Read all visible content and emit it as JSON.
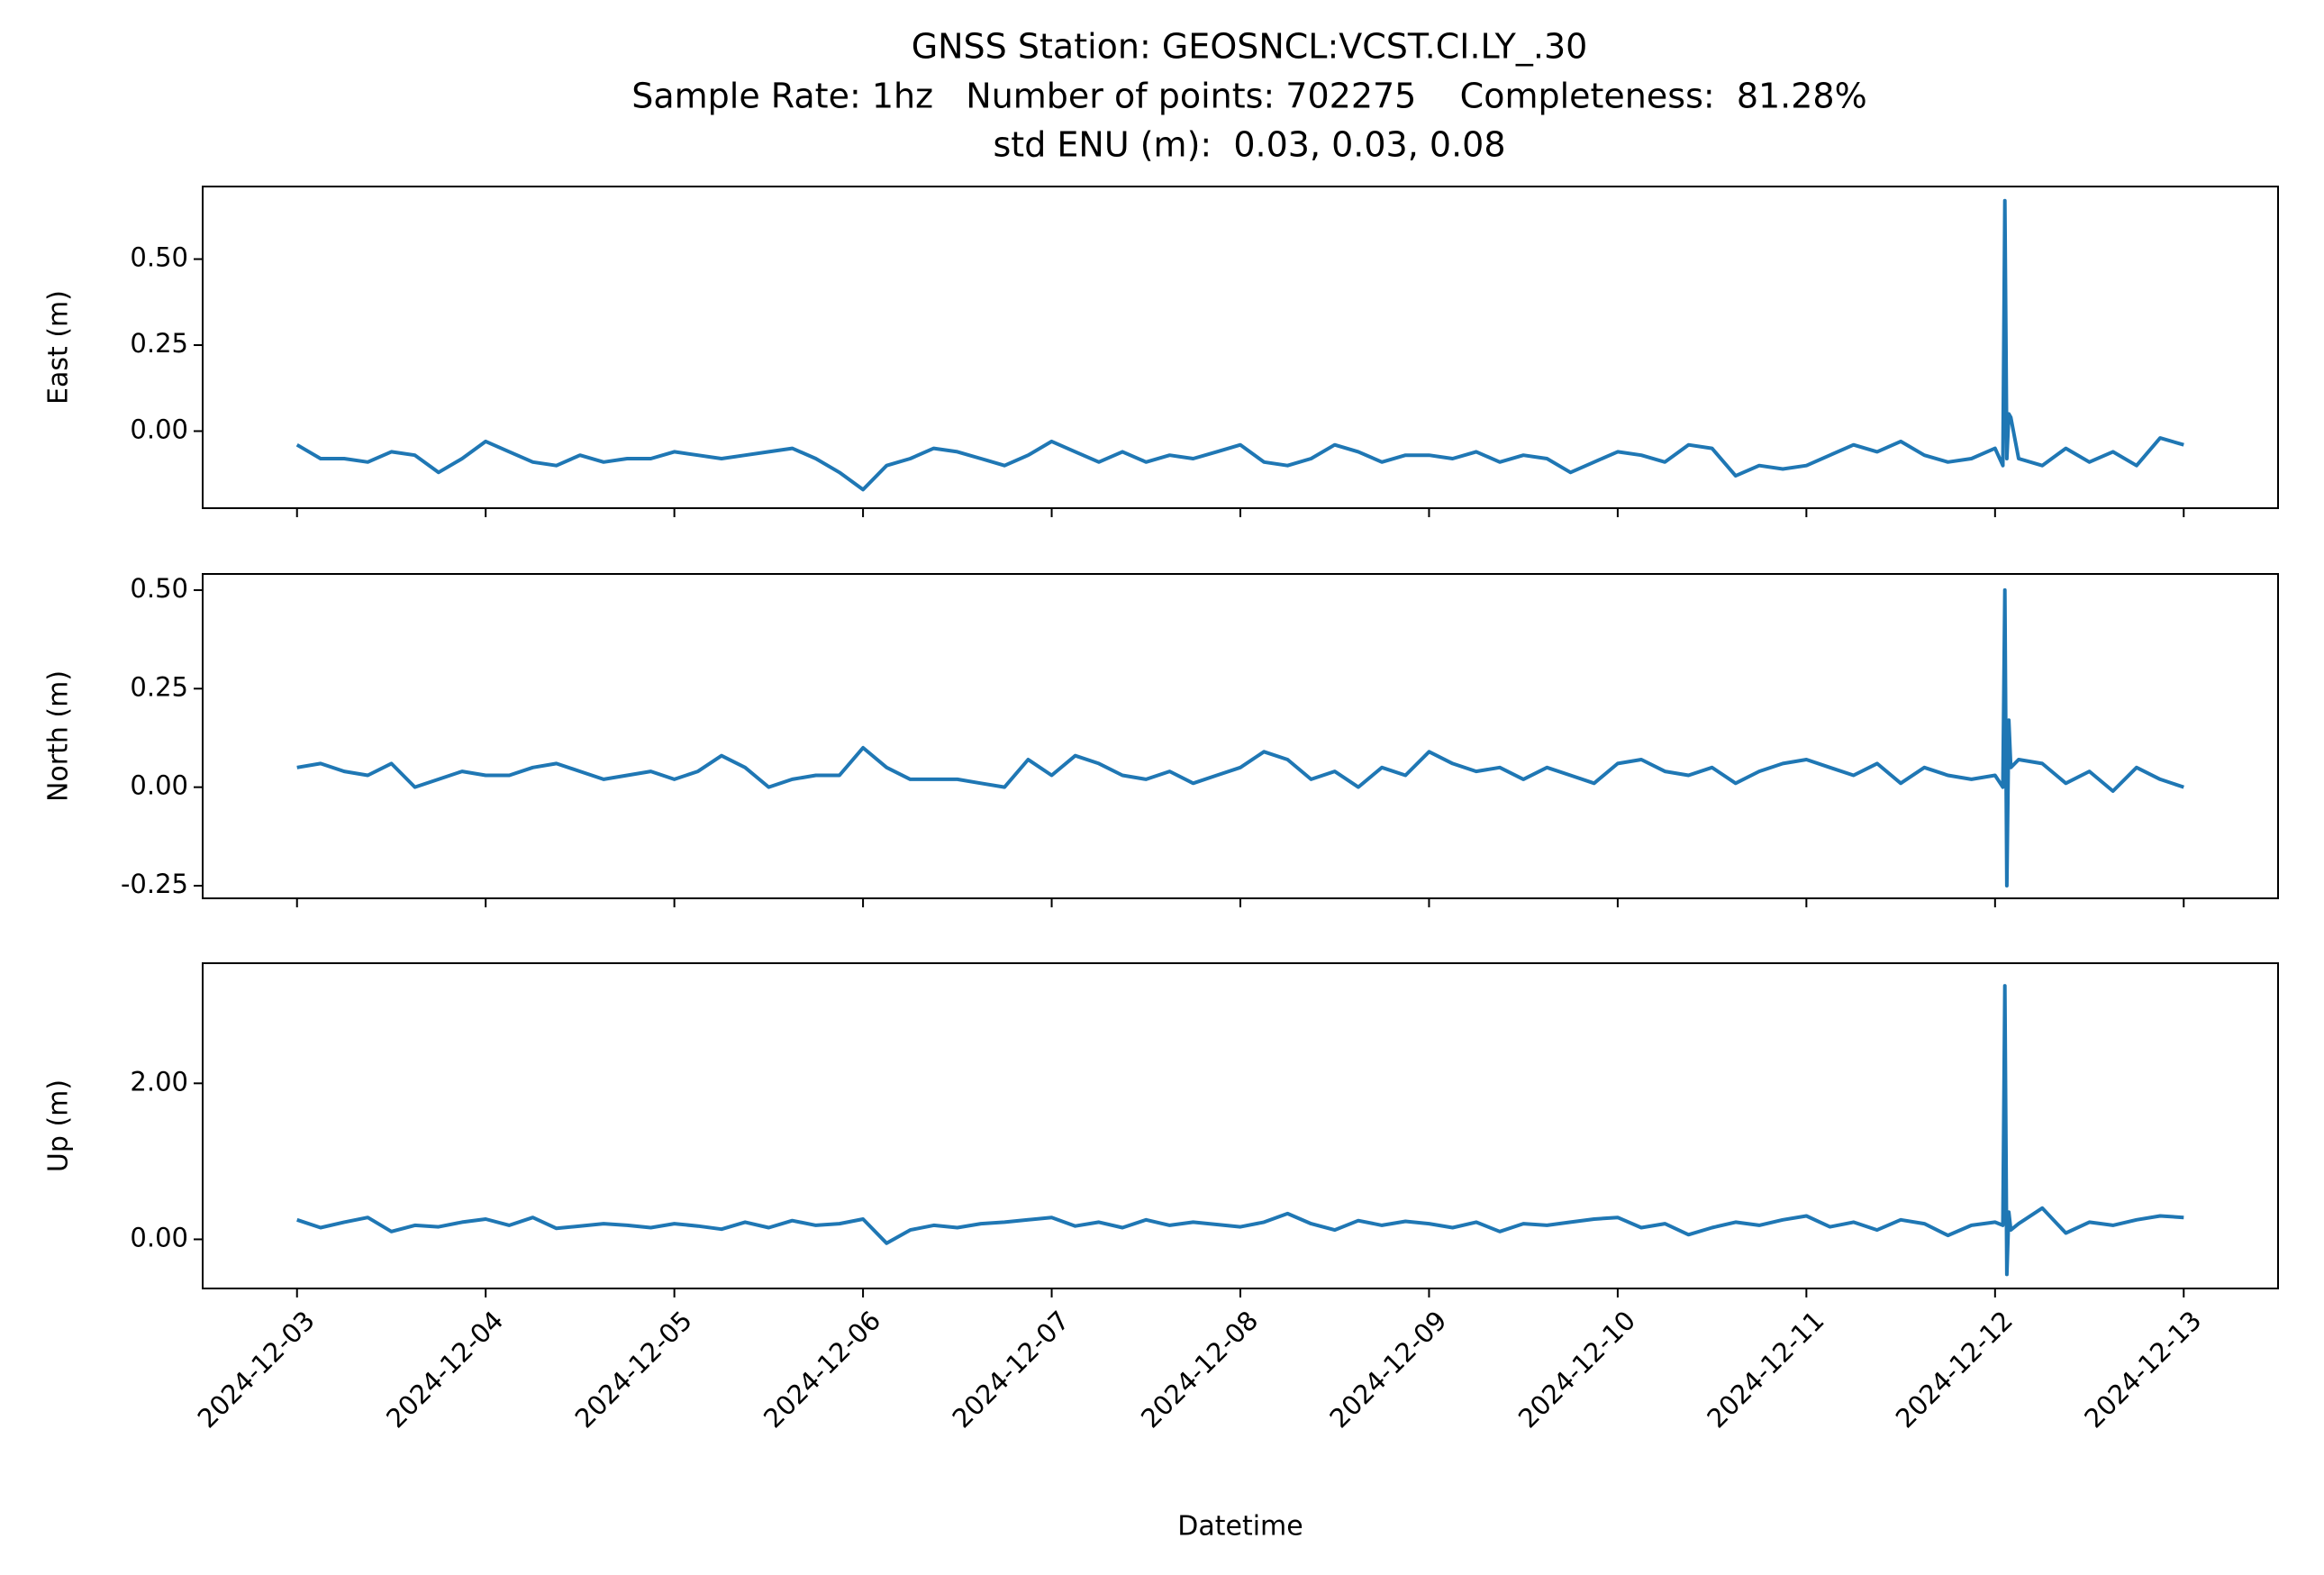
{
  "title": [
    "GNSS Station: GEOSNCL:VCST.CI.LY_.30",
    "Sample Rate: 1hz   Number of points: 702275    Completeness:  81.28%",
    "std ENU (m):  0.03, 0.03, 0.08"
  ],
  "chart_data": [
    {
      "type": "line",
      "ylabel": "East (m)",
      "color": "#1f77b4",
      "x": [
        "2024-12-03T00:00",
        "2024-12-03T03:00",
        "2024-12-03T06:00",
        "2024-12-03T09:00",
        "2024-12-03T12:00",
        "2024-12-03T15:00",
        "2024-12-03T18:00",
        "2024-12-03T21:00",
        "2024-12-04T00:00",
        "2024-12-04T03:00",
        "2024-12-04T06:00",
        "2024-12-04T09:00",
        "2024-12-04T12:00",
        "2024-12-04T15:00",
        "2024-12-04T18:00",
        "2024-12-04T21:00",
        "2024-12-05T00:00",
        "2024-12-05T03:00",
        "2024-12-05T06:00",
        "2024-12-05T09:00",
        "2024-12-05T12:00",
        "2024-12-05T15:00",
        "2024-12-05T18:00",
        "2024-12-05T21:00",
        "2024-12-06T00:00",
        "2024-12-06T03:00",
        "2024-12-06T06:00",
        "2024-12-06T09:00",
        "2024-12-06T12:00",
        "2024-12-06T15:00",
        "2024-12-06T18:00",
        "2024-12-06T21:00",
        "2024-12-07T00:00",
        "2024-12-07T03:00",
        "2024-12-07T06:00",
        "2024-12-07T09:00",
        "2024-12-07T12:00",
        "2024-12-07T15:00",
        "2024-12-07T18:00",
        "2024-12-07T21:00",
        "2024-12-08T00:00",
        "2024-12-08T03:00",
        "2024-12-08T06:00",
        "2024-12-08T09:00",
        "2024-12-08T12:00",
        "2024-12-08T15:00",
        "2024-12-08T18:00",
        "2024-12-08T21:00",
        "2024-12-09T00:00",
        "2024-12-09T03:00",
        "2024-12-09T06:00",
        "2024-12-09T09:00",
        "2024-12-09T12:00",
        "2024-12-09T15:00",
        "2024-12-09T18:00",
        "2024-12-09T21:00",
        "2024-12-10T00:00",
        "2024-12-10T03:00",
        "2024-12-10T06:00",
        "2024-12-10T09:00",
        "2024-12-10T12:00",
        "2024-12-10T15:00",
        "2024-12-10T18:00",
        "2024-12-10T21:00",
        "2024-12-11T00:00",
        "2024-12-11T03:00",
        "2024-12-11T06:00",
        "2024-12-11T09:00",
        "2024-12-11T12:00",
        "2024-12-11T15:00",
        "2024-12-11T18:00",
        "2024-12-11T21:00",
        "2024-12-12T00:00",
        "2024-12-12T01:00",
        "2024-12-12T01:15",
        "2024-12-12T01:30",
        "2024-12-12T01:45",
        "2024-12-12T02:00",
        "2024-12-12T03:00",
        "2024-12-12T06:00",
        "2024-12-12T09:00",
        "2024-12-12T12:00",
        "2024-12-12T15:00",
        "2024-12-12T18:00",
        "2024-12-12T21:00",
        "2024-12-13T00:00"
      ],
      "values": [
        -0.04,
        -0.08,
        -0.08,
        -0.09,
        -0.06,
        -0.07,
        -0.12,
        -0.08,
        -0.03,
        -0.06,
        -0.09,
        -0.1,
        -0.07,
        -0.09,
        -0.08,
        -0.08,
        -0.06,
        -0.07,
        -0.08,
        -0.07,
        -0.06,
        -0.05,
        -0.08,
        -0.12,
        -0.17,
        -0.1,
        -0.08,
        -0.05,
        -0.06,
        -0.08,
        -0.1,
        -0.07,
        -0.03,
        -0.06,
        -0.09,
        -0.06,
        -0.09,
        -0.07,
        -0.08,
        -0.06,
        -0.04,
        -0.09,
        -0.1,
        -0.08,
        -0.04,
        -0.06,
        -0.09,
        -0.07,
        -0.07,
        -0.08,
        -0.06,
        -0.09,
        -0.07,
        -0.08,
        -0.12,
        -0.09,
        -0.06,
        -0.07,
        -0.09,
        -0.04,
        -0.05,
        -0.13,
        -0.1,
        -0.11,
        -0.1,
        -0.07,
        -0.04,
        -0.06,
        -0.03,
        -0.07,
        -0.09,
        -0.08,
        -0.05,
        -0.1,
        0.67,
        -0.08,
        0.05,
        0.04,
        -0.08,
        -0.1,
        -0.05,
        -0.09,
        -0.06,
        -0.1,
        -0.02,
        -0.04
      ],
      "xlim": [
        "2024-12-02T12:00",
        "2024-12-13T12:00"
      ],
      "xticks": [
        "2024-12-03",
        "2024-12-04",
        "2024-12-05",
        "2024-12-06",
        "2024-12-07",
        "2024-12-08",
        "2024-12-09",
        "2024-12-10",
        "2024-12-11",
        "2024-12-12",
        "2024-12-13"
      ],
      "ylim": [
        -0.224,
        0.711
      ],
      "yticks": [
        {
          "value": 0.5,
          "label": "0.50"
        },
        {
          "value": 0.25,
          "label": "0.25"
        },
        {
          "value": 0,
          "label": "0.00"
        }
      ]
    },
    {
      "type": "line",
      "ylabel": "North (m)",
      "color": "#1f77b4",
      "x": [
        "2024-12-03T00:00",
        "2024-12-03T03:00",
        "2024-12-03T06:00",
        "2024-12-03T09:00",
        "2024-12-03T12:00",
        "2024-12-03T15:00",
        "2024-12-03T18:00",
        "2024-12-03T21:00",
        "2024-12-04T00:00",
        "2024-12-04T03:00",
        "2024-12-04T06:00",
        "2024-12-04T09:00",
        "2024-12-04T12:00",
        "2024-12-04T15:00",
        "2024-12-04T18:00",
        "2024-12-04T21:00",
        "2024-12-05T00:00",
        "2024-12-05T03:00",
        "2024-12-05T06:00",
        "2024-12-05T09:00",
        "2024-12-05T12:00",
        "2024-12-05T15:00",
        "2024-12-05T18:00",
        "2024-12-05T21:00",
        "2024-12-06T00:00",
        "2024-12-06T03:00",
        "2024-12-06T06:00",
        "2024-12-06T09:00",
        "2024-12-06T12:00",
        "2024-12-06T15:00",
        "2024-12-06T18:00",
        "2024-12-06T21:00",
        "2024-12-07T00:00",
        "2024-12-07T03:00",
        "2024-12-07T06:00",
        "2024-12-07T09:00",
        "2024-12-07T12:00",
        "2024-12-07T15:00",
        "2024-12-07T18:00",
        "2024-12-07T21:00",
        "2024-12-08T00:00",
        "2024-12-08T03:00",
        "2024-12-08T06:00",
        "2024-12-08T09:00",
        "2024-12-08T12:00",
        "2024-12-08T15:00",
        "2024-12-08T18:00",
        "2024-12-08T21:00",
        "2024-12-09T00:00",
        "2024-12-09T03:00",
        "2024-12-09T06:00",
        "2024-12-09T09:00",
        "2024-12-09T12:00",
        "2024-12-09T15:00",
        "2024-12-09T18:00",
        "2024-12-09T21:00",
        "2024-12-10T00:00",
        "2024-12-10T03:00",
        "2024-12-10T06:00",
        "2024-12-10T09:00",
        "2024-12-10T12:00",
        "2024-12-10T15:00",
        "2024-12-10T18:00",
        "2024-12-10T21:00",
        "2024-12-11T00:00",
        "2024-12-11T03:00",
        "2024-12-11T06:00",
        "2024-12-11T09:00",
        "2024-12-11T12:00",
        "2024-12-11T15:00",
        "2024-12-11T18:00",
        "2024-12-11T21:00",
        "2024-12-12T00:00",
        "2024-12-12T01:00",
        "2024-12-12T01:15",
        "2024-12-12T01:30",
        "2024-12-12T01:45",
        "2024-12-12T02:00",
        "2024-12-12T03:00",
        "2024-12-12T06:00",
        "2024-12-12T09:00",
        "2024-12-12T12:00",
        "2024-12-12T15:00",
        "2024-12-12T18:00",
        "2024-12-12T21:00",
        "2024-12-13T00:00"
      ],
      "values": [
        0.05,
        0.06,
        0.04,
        0.03,
        0.06,
        0.0,
        0.02,
        0.04,
        0.03,
        0.03,
        0.05,
        0.06,
        0.04,
        0.02,
        0.03,
        0.04,
        0.02,
        0.04,
        0.08,
        0.05,
        0.0,
        0.02,
        0.03,
        0.03,
        0.1,
        0.05,
        0.02,
        0.02,
        0.02,
        0.01,
        0.0,
        0.07,
        0.03,
        0.08,
        0.06,
        0.03,
        0.02,
        0.04,
        0.01,
        0.03,
        0.05,
        0.09,
        0.07,
        0.02,
        0.04,
        0.0,
        0.05,
        0.03,
        0.09,
        0.06,
        0.04,
        0.05,
        0.02,
        0.05,
        0.03,
        0.01,
        0.06,
        0.07,
        0.04,
        0.03,
        0.05,
        0.01,
        0.04,
        0.06,
        0.07,
        0.05,
        0.03,
        0.06,
        0.01,
        0.05,
        0.03,
        0.02,
        0.03,
        0.0,
        0.5,
        -0.25,
        0.17,
        0.05,
        0.07,
        0.06,
        0.01,
        0.04,
        -0.01,
        0.05,
        0.02,
        0.0
      ],
      "xlim": [
        "2024-12-02T12:00",
        "2024-12-13T12:00"
      ],
      "xticks": [
        "2024-12-03",
        "2024-12-04",
        "2024-12-05",
        "2024-12-06",
        "2024-12-07",
        "2024-12-08",
        "2024-12-09",
        "2024-12-10",
        "2024-12-11",
        "2024-12-12",
        "2024-12-13"
      ],
      "ylim": [
        -0.282,
        0.541
      ],
      "yticks": [
        {
          "value": 0.5,
          "label": "0.50"
        },
        {
          "value": 0.25,
          "label": "0.25"
        },
        {
          "value": 0,
          "label": "0.00"
        },
        {
          "value": -0.25,
          "label": "-0.25"
        }
      ]
    },
    {
      "type": "line",
      "ylabel": "Up (m)",
      "xlabel": "Datetime",
      "color": "#1f77b4",
      "x": [
        "2024-12-03T00:00",
        "2024-12-03T03:00",
        "2024-12-03T06:00",
        "2024-12-03T09:00",
        "2024-12-03T12:00",
        "2024-12-03T15:00",
        "2024-12-03T18:00",
        "2024-12-03T21:00",
        "2024-12-04T00:00",
        "2024-12-04T03:00",
        "2024-12-04T06:00",
        "2024-12-04T09:00",
        "2024-12-04T12:00",
        "2024-12-04T15:00",
        "2024-12-04T18:00",
        "2024-12-04T21:00",
        "2024-12-05T00:00",
        "2024-12-05T03:00",
        "2024-12-05T06:00",
        "2024-12-05T09:00",
        "2024-12-05T12:00",
        "2024-12-05T15:00",
        "2024-12-05T18:00",
        "2024-12-05T21:00",
        "2024-12-06T00:00",
        "2024-12-06T03:00",
        "2024-12-06T06:00",
        "2024-12-06T09:00",
        "2024-12-06T12:00",
        "2024-12-06T15:00",
        "2024-12-06T18:00",
        "2024-12-06T21:00",
        "2024-12-07T00:00",
        "2024-12-07T03:00",
        "2024-12-07T06:00",
        "2024-12-07T09:00",
        "2024-12-07T12:00",
        "2024-12-07T15:00",
        "2024-12-07T18:00",
        "2024-12-07T21:00",
        "2024-12-08T00:00",
        "2024-12-08T03:00",
        "2024-12-08T06:00",
        "2024-12-08T09:00",
        "2024-12-08T12:00",
        "2024-12-08T15:00",
        "2024-12-08T18:00",
        "2024-12-08T21:00",
        "2024-12-09T00:00",
        "2024-12-09T03:00",
        "2024-12-09T06:00",
        "2024-12-09T09:00",
        "2024-12-09T12:00",
        "2024-12-09T15:00",
        "2024-12-09T18:00",
        "2024-12-09T21:00",
        "2024-12-10T00:00",
        "2024-12-10T03:00",
        "2024-12-10T06:00",
        "2024-12-10T09:00",
        "2024-12-10T12:00",
        "2024-12-10T15:00",
        "2024-12-10T18:00",
        "2024-12-10T21:00",
        "2024-12-11T00:00",
        "2024-12-11T03:00",
        "2024-12-11T06:00",
        "2024-12-11T09:00",
        "2024-12-11T12:00",
        "2024-12-11T15:00",
        "2024-12-11T18:00",
        "2024-12-11T21:00",
        "2024-12-12T00:00",
        "2024-12-12T01:00",
        "2024-12-12T01:15",
        "2024-12-12T01:30",
        "2024-12-12T01:45",
        "2024-12-12T02:00",
        "2024-12-12T03:00",
        "2024-12-12T06:00",
        "2024-12-12T09:00",
        "2024-12-12T12:00",
        "2024-12-12T15:00",
        "2024-12-12T18:00",
        "2024-12-12T21:00",
        "2024-12-13T00:00"
      ],
      "values": [
        0.25,
        0.15,
        0.22,
        0.28,
        0.1,
        0.18,
        0.16,
        0.22,
        0.26,
        0.18,
        0.28,
        0.14,
        0.17,
        0.2,
        0.18,
        0.15,
        0.2,
        0.17,
        0.13,
        0.22,
        0.15,
        0.24,
        0.18,
        0.2,
        0.26,
        -0.05,
        0.12,
        0.18,
        0.15,
        0.2,
        0.22,
        0.25,
        0.28,
        0.17,
        0.22,
        0.15,
        0.25,
        0.18,
        0.22,
        0.19,
        0.16,
        0.22,
        0.33,
        0.2,
        0.12,
        0.24,
        0.18,
        0.23,
        0.2,
        0.15,
        0.22,
        0.1,
        0.2,
        0.18,
        0.22,
        0.26,
        0.28,
        0.15,
        0.2,
        0.06,
        0.15,
        0.22,
        0.18,
        0.25,
        0.3,
        0.16,
        0.22,
        0.12,
        0.25,
        0.2,
        0.05,
        0.18,
        0.22,
        0.18,
        3.25,
        -0.45,
        0.35,
        0.12,
        0.2,
        0.4,
        0.08,
        0.22,
        0.18,
        0.25,
        0.3,
        0.28
      ],
      "xlim": [
        "2024-12-02T12:00",
        "2024-12-13T12:00"
      ],
      "xticks": [
        "2024-12-03",
        "2024-12-04",
        "2024-12-05",
        "2024-12-06",
        "2024-12-07",
        "2024-12-08",
        "2024-12-09",
        "2024-12-10",
        "2024-12-11",
        "2024-12-12",
        "2024-12-13"
      ],
      "ylim": [
        -0.63,
        3.54
      ],
      "yticks": [
        {
          "value": 2,
          "label": "2.00"
        },
        {
          "value": 0,
          "label": "0.00"
        }
      ]
    }
  ]
}
